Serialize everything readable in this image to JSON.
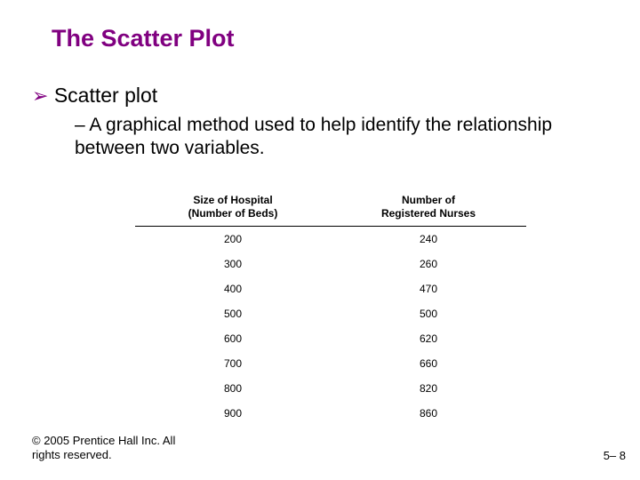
{
  "title": "The Scatter Plot",
  "title_color": "#800080",
  "title_fontsize": 27,
  "bullet_l1_text": "Scatter plot",
  "bullet_l1_fontsize": 23,
  "bullet_l1_marker_color": "#800080",
  "bullet_l2_dash": "–",
  "bullet_l2_text": "A graphical method used to help identify the relationship between two variables.",
  "bullet_l2_fontsize": 21,
  "table": {
    "type": "table",
    "columns": [
      "Size of Hospital\n(Number of Beds)",
      "Number of\nRegistered Nurses"
    ],
    "header_fontsize": 12,
    "cell_fontsize": 12,
    "header_border_color": "#000000",
    "rows": [
      [
        "200",
        "240"
      ],
      [
        "300",
        "260"
      ],
      [
        "400",
        "470"
      ],
      [
        "500",
        "500"
      ],
      [
        "600",
        "620"
      ],
      [
        "700",
        "660"
      ],
      [
        "800",
        "820"
      ],
      [
        "900",
        "860"
      ]
    ]
  },
  "footer_left_line1": "© 2005 Prentice Hall Inc. All",
  "footer_left_line2": "rights reserved.",
  "footer_right": "5– 8",
  "background_color": "#ffffff"
}
